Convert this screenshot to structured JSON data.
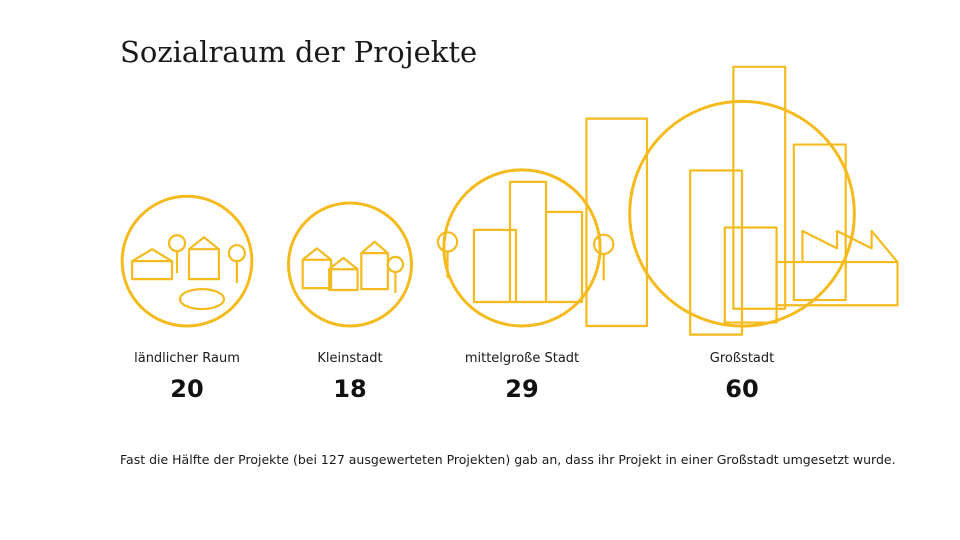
{
  "chart_data": {
    "type": "bubble",
    "title": "Sozialraum der Projekte",
    "categories": [
      "ländlicher Raum",
      "Kleinstadt",
      "mittelgroße Stadt",
      "Großstadt"
    ],
    "values": [
      20,
      18,
      29,
      60
    ],
    "color": "#f5bb1e",
    "note": "Fast die Hälfte der Projekte (bei 127 ausgewerteten Projekten) gab an, dass ihr Projekt in einer Großstadt umgesetzt wurde."
  }
}
